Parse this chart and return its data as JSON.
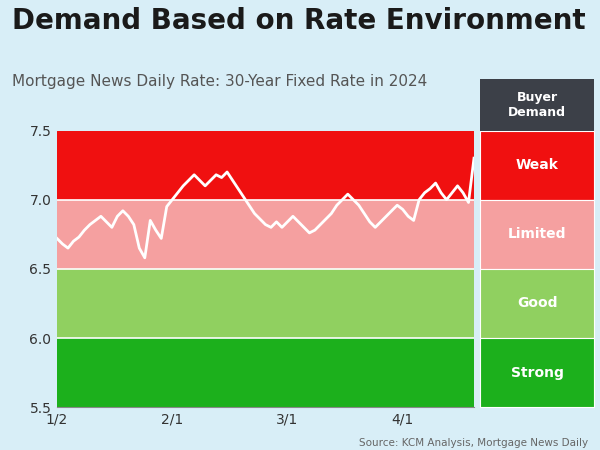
{
  "title": "Demand Based on Rate Environment",
  "subtitle": "Mortgage News Daily Rate: 30-Year Fixed Rate in 2024",
  "source": "Source: KCM Analysis, Mortgage News Daily",
  "bands": [
    {
      "label": "Weak",
      "ymin": 7.0,
      "ymax": 7.5,
      "color": "#f01010"
    },
    {
      "label": "Limited",
      "ymin": 6.5,
      "ymax": 7.0,
      "color": "#f5a0a0"
    },
    {
      "label": "Good",
      "ymin": 6.0,
      "ymax": 6.5,
      "color": "#90d060"
    },
    {
      "label": "Strong",
      "ymin": 5.5,
      "ymax": 6.0,
      "color": "#1cb01c"
    }
  ],
  "header_color": "#3c4048",
  "ylim": [
    5.5,
    7.5
  ],
  "yticks": [
    5.5,
    6.0,
    6.5,
    7.0,
    7.5
  ],
  "xtick_labels": [
    "1/2",
    "2/1",
    "3/1",
    "4/1"
  ],
  "xtick_positions": [
    0,
    21,
    42,
    63
  ],
  "line_color": "white",
  "line_width": 2.0,
  "bg_color": "#d8eef7",
  "title_fontsize": 20,
  "subtitle_fontsize": 11,
  "tick_fontsize": 10,
  "rate_data": [
    6.72,
    6.68,
    6.65,
    6.7,
    6.73,
    6.78,
    6.82,
    6.85,
    6.88,
    6.84,
    6.8,
    6.88,
    6.92,
    6.88,
    6.82,
    6.65,
    6.58,
    6.85,
    6.78,
    6.72,
    6.95,
    7.0,
    7.05,
    7.1,
    7.14,
    7.18,
    7.14,
    7.1,
    7.14,
    7.18,
    7.16,
    7.2,
    7.14,
    7.08,
    7.02,
    6.96,
    6.9,
    6.86,
    6.82,
    6.8,
    6.84,
    6.8,
    6.84,
    6.88,
    6.84,
    6.8,
    6.76,
    6.78,
    6.82,
    6.86,
    6.9,
    6.96,
    7.0,
    7.04,
    7.0,
    6.96,
    6.9,
    6.84,
    6.8,
    6.84,
    6.88,
    6.92,
    6.96,
    6.93,
    6.88,
    6.85,
    7.0,
    7.05,
    7.08,
    7.12,
    7.05,
    7.0,
    7.05,
    7.1,
    7.05,
    6.98,
    7.3
  ]
}
